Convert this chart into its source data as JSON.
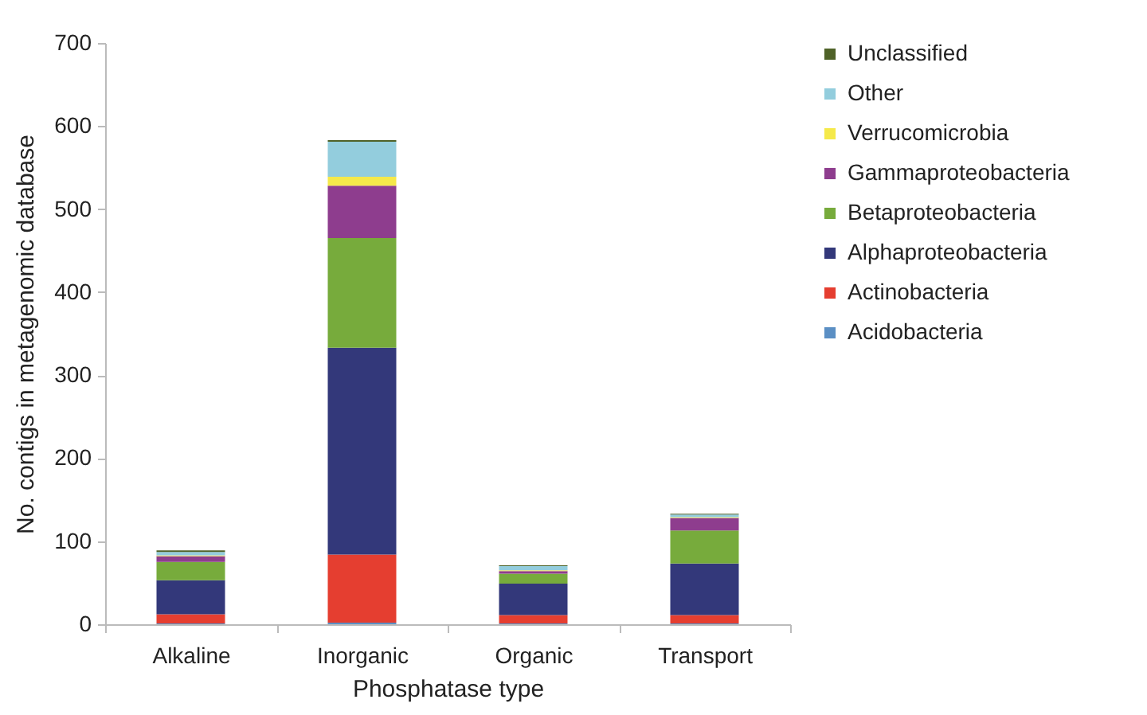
{
  "chart_data": {
    "type": "bar",
    "stacked": true,
    "xlabel": "Phosphatase type",
    "ylabel": "No. contigs in metagenomic database",
    "categories": [
      "Alkaline",
      "Inorganic",
      "Organic",
      "Transport"
    ],
    "series": [
      {
        "name": "Acidobacteria",
        "color": "#5b8fc4",
        "values": [
          1,
          2,
          1,
          1
        ]
      },
      {
        "name": "Actinobacteria",
        "color": "#e53e30",
        "values": [
          11,
          82,
          10,
          10
        ]
      },
      {
        "name": "Alphaproteobacteria",
        "color": "#33387a",
        "values": [
          41,
          249,
          38,
          62
        ]
      },
      {
        "name": "Betaproteobacteria",
        "color": "#77ab3c",
        "values": [
          22,
          132,
          12,
          40
        ]
      },
      {
        "name": "Gammaproteobacteria",
        "color": "#8e3d8e",
        "values": [
          7,
          63,
          3,
          15
        ]
      },
      {
        "name": "Verrucomicrobia",
        "color": "#f5e94a",
        "values": [
          1,
          11,
          1,
          1
        ]
      },
      {
        "name": "Other",
        "color": "#93cddd",
        "values": [
          4,
          42,
          5,
          3
        ]
      },
      {
        "name": "Unclassified",
        "color": "#4f6228",
        "values": [
          2,
          2,
          1,
          1
        ]
      }
    ],
    "ylim": [
      0,
      700
    ],
    "yticks": [
      0,
      100,
      200,
      300,
      400,
      500,
      600,
      700
    ],
    "grid": false,
    "legend": "right"
  }
}
